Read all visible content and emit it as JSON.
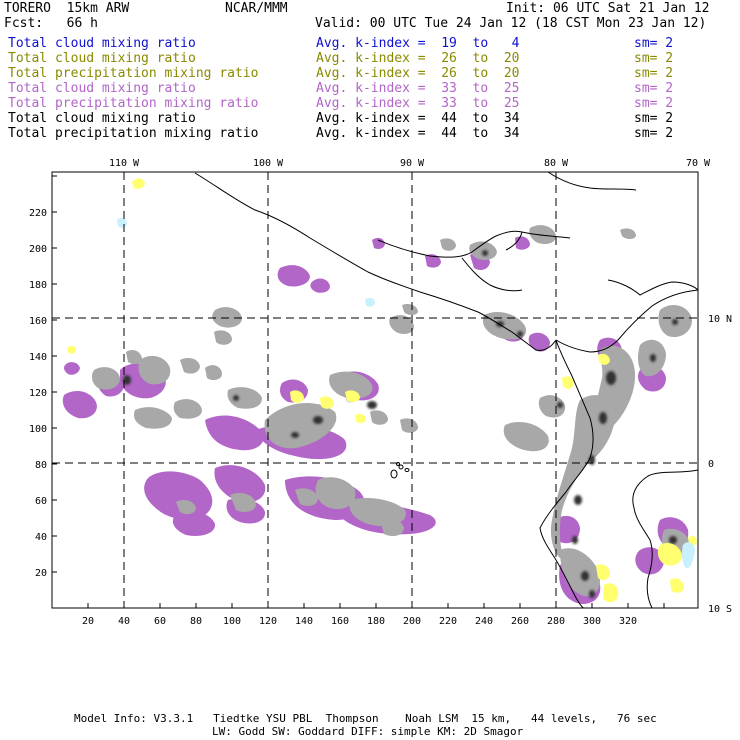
{
  "header": {
    "model": "TORERO  15km ARW",
    "org": "NCAR/MMM",
    "init": "Init: 06 UTC Sat 21 Jan 12",
    "fcst": "Fcst:   66 h",
    "valid": "Valid: 00 UTC Tue 24 Jan 12 (18 CST Mon 23 Jan 12)"
  },
  "legend": [
    {
      "field": "Total cloud mixing ratio",
      "kindex": "Avg. k-index =  19  to   4",
      "sm": "sm= 2",
      "color": "#1010d0"
    },
    {
      "field": "Total cloud mixing ratio",
      "kindex": "Avg. k-index =  26  to  20",
      "sm": "sm= 2",
      "color": "#8a8a00"
    },
    {
      "field": "Total precipitation mixing ratio",
      "kindex": "Avg. k-index =  26  to  20",
      "sm": "sm= 2",
      "color": "#8a8a00"
    },
    {
      "field": "Total cloud mixing ratio",
      "kindex": "Avg. k-index =  33  to  25",
      "sm": "sm= 2",
      "color": "#b266c8"
    },
    {
      "field": "Total precipitation mixing ratio",
      "kindex": "Avg. k-index =  33  to  25",
      "sm": "sm= 2",
      "color": "#b266c8"
    },
    {
      "field": "Total cloud mixing ratio",
      "kindex": "Avg. k-index =  44  to  34",
      "sm": "sm= 2",
      "color": "#000000"
    },
    {
      "field": "Total precipitation mixing ratio",
      "kindex": "Avg. k-index =  44  to  34",
      "sm": "sm= 2",
      "color": "#000000"
    }
  ],
  "map": {
    "lon_labels": [
      "110 W",
      "100 W",
      "90 W",
      "80 W",
      "70 W"
    ],
    "lat_labels": [
      "10 N",
      "0",
      "10 S"
    ],
    "x_ticks": [
      "20",
      "40",
      "60",
      "80",
      "100",
      "120",
      "140",
      "160",
      "180",
      "200",
      "220",
      "240",
      "260",
      "280",
      "300",
      "320"
    ],
    "y_ticks": [
      "20",
      "40",
      "60",
      "80",
      "100",
      "120",
      "140",
      "160",
      "180",
      "200",
      "220"
    ],
    "colors": {
      "purple": "#b266c8",
      "gray": "#a8a8a8",
      "dark": "#303030",
      "yellow": "#ffff70",
      "cyan": "#c8f0ff",
      "coast": "#000000",
      "grid": "#000000"
    }
  },
  "footer": {
    "line1": "Model Info: V3.3.1   Tiedtke YSU PBL  Thompson    Noah LSM  15 km,   44 levels,   76 sec",
    "line2": "LW: Godd SW: Goddard DIFF: simple KM: 2D Smagor"
  }
}
